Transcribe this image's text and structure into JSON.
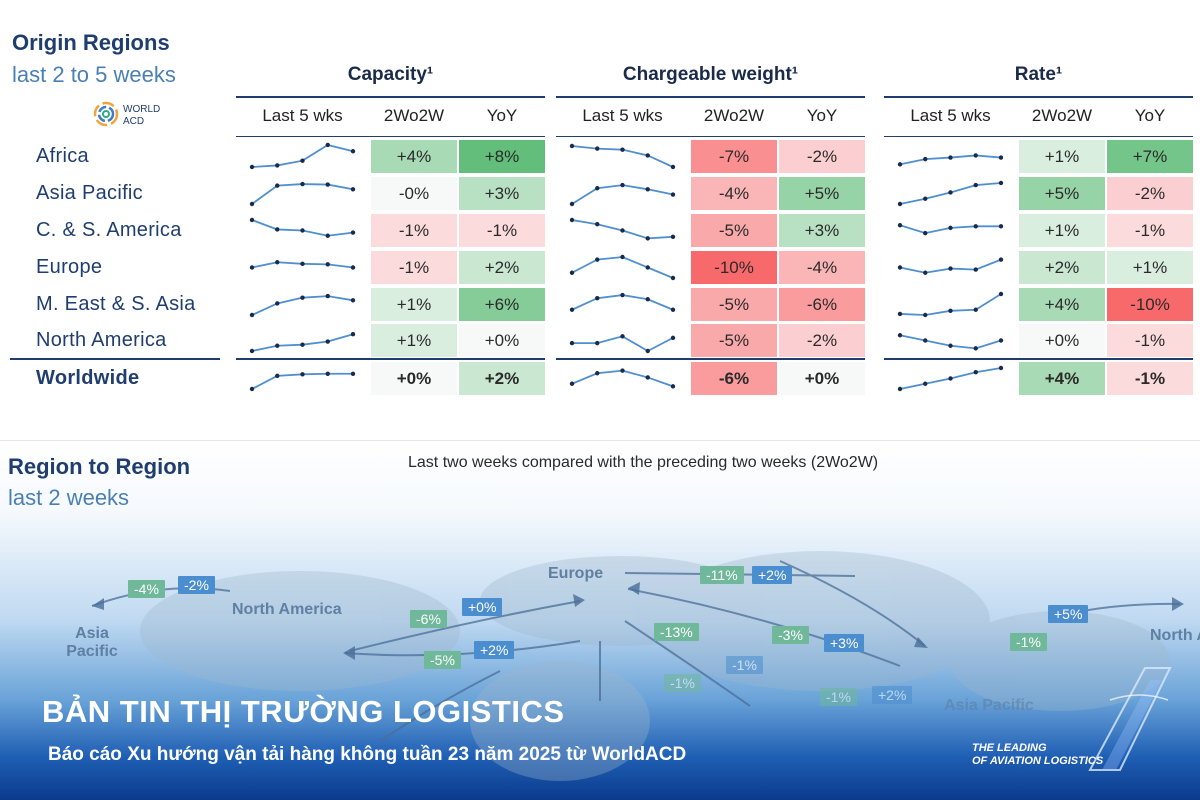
{
  "origin": {
    "title": "Origin Regions",
    "subtitle": "last 2 to 5 weeks",
    "logo_text": [
      "WORLD",
      "ACD"
    ]
  },
  "groups": [
    {
      "title": "Capacity¹",
      "cols": [
        "Last 5 wks",
        "2Wo2W",
        "YoY"
      ]
    },
    {
      "title": "Chargeable weight¹",
      "cols": [
        "Last 5 wks",
        "2Wo2W",
        "YoY"
      ]
    },
    {
      "title": "Rate¹",
      "cols": [
        "Last 5 wks",
        "2Wo2W",
        "YoY"
      ]
    }
  ],
  "chart_data": {
    "type": "table",
    "title": "Origin Regions — last 2 to 5 weeks",
    "rows": [
      {
        "region": "Africa",
        "capacity": {
          "spark": [
            1.0,
            1.3,
            2.2,
            5.2,
            4.0
          ],
          "w2w": "+4%",
          "w2w_val": 4,
          "yoy": "+8%",
          "yoy_val": 8
        },
        "weight": {
          "spark": [
            5.0,
            4.5,
            4.3,
            3.2,
            1.0
          ],
          "w2w": "-7%",
          "w2w_val": -7,
          "yoy": "-2%",
          "yoy_val": -2
        },
        "rate": {
          "spark": [
            1.5,
            2.5,
            2.8,
            3.2,
            2.8
          ],
          "w2w": "+1%",
          "w2w_val": 1,
          "yoy": "+7%",
          "yoy_val": 7
        }
      },
      {
        "region": "Asia Pacific",
        "capacity": {
          "spark": [
            1.0,
            4.5,
            4.8,
            4.7,
            3.8
          ],
          "w2w": "-0%",
          "w2w_val": 0,
          "yoy": "+3%",
          "yoy_val": 3
        },
        "weight": {
          "spark": [
            1.0,
            4.0,
            4.6,
            3.8,
            2.8
          ],
          "w2w": "-4%",
          "w2w_val": -4,
          "yoy": "+5%",
          "yoy_val": 5
        },
        "rate": {
          "spark": [
            1.0,
            2.0,
            3.2,
            4.6,
            5.0
          ],
          "w2w": "+5%",
          "w2w_val": 5,
          "yoy": "-2%",
          "yoy_val": -2
        }
      },
      {
        "region": "C. & S. America",
        "capacity": {
          "spark": [
            5.0,
            3.2,
            3.0,
            2.0,
            2.6
          ],
          "w2w": "-1%",
          "w2w_val": -1,
          "yoy": "-1%",
          "yoy_val": -1
        },
        "weight": {
          "spark": [
            5.0,
            4.2,
            3.0,
            1.5,
            1.8
          ],
          "w2w": "-5%",
          "w2w_val": -5,
          "yoy": "+3%",
          "yoy_val": 3
        },
        "rate": {
          "spark": [
            4.0,
            2.5,
            3.5,
            3.8,
            3.8
          ],
          "w2w": "+1%",
          "w2w_val": 1,
          "yoy": "-1%",
          "yoy_val": -1
        }
      },
      {
        "region": "Europe",
        "capacity": {
          "spark": [
            3.0,
            4.0,
            3.7,
            3.6,
            3.0
          ],
          "w2w": "-1%",
          "w2w_val": -1,
          "yoy": "+2%",
          "yoy_val": 2
        },
        "weight": {
          "spark": [
            2.0,
            4.5,
            5.0,
            3.0,
            1.0
          ],
          "w2w": "-10%",
          "w2w_val": -10,
          "yoy": "-4%",
          "yoy_val": -4
        },
        "rate": {
          "spark": [
            3.0,
            2.0,
            2.8,
            2.6,
            4.5
          ],
          "w2w": "+2%",
          "w2w_val": 2,
          "yoy": "+1%",
          "yoy_val": 1
        }
      },
      {
        "region": "M. East & S. Asia",
        "capacity": {
          "spark": [
            1.0,
            3.2,
            4.3,
            4.6,
            3.8
          ],
          "w2w": "+1%",
          "w2w_val": 1,
          "yoy": "+6%",
          "yoy_val": 6
        },
        "weight": {
          "spark": [
            2.0,
            4.2,
            4.8,
            4.0,
            2.0
          ],
          "w2w": "-5%",
          "w2w_val": -5,
          "yoy": "-6%",
          "yoy_val": -6
        },
        "rate": {
          "spark": [
            1.2,
            1.0,
            1.8,
            2.0,
            5.0
          ],
          "w2w": "+4%",
          "w2w_val": 4,
          "yoy": "-10%",
          "yoy_val": -10
        }
      },
      {
        "region": "North America",
        "capacity": {
          "spark": [
            1.0,
            2.0,
            2.2,
            2.8,
            4.2
          ],
          "w2w": "+1%",
          "w2w_val": 1,
          "yoy": "+0%",
          "yoy_val": 0
        },
        "weight": {
          "spark": [
            2.5,
            2.5,
            3.8,
            1.0,
            3.5
          ],
          "w2w": "-5%",
          "w2w_val": -5,
          "yoy": "-2%",
          "yoy_val": -2
        },
        "rate": {
          "spark": [
            4.0,
            3.0,
            2.0,
            1.5,
            3.0
          ],
          "w2w": "+0%",
          "w2w_val": 0,
          "yoy": "-1%",
          "yoy_val": -1
        }
      },
      {
        "region": "Worldwide",
        "bold": true,
        "capacity": {
          "spark": [
            1.0,
            3.5,
            3.8,
            3.9,
            3.9
          ],
          "w2w": "+0%",
          "w2w_val": 0,
          "yoy": "+2%",
          "yoy_val": 2
        },
        "weight": {
          "spark": [
            2.0,
            4.0,
            4.5,
            3.2,
            1.5
          ],
          "w2w": "-6%",
          "w2w_val": -6,
          "yoy": "+0%",
          "yoy_val": 0
        },
        "rate": {
          "spark": [
            1.0,
            2.0,
            3.0,
            4.2,
            5.0
          ],
          "w2w": "+4%",
          "w2w_val": 4,
          "yoy": "-1%",
          "yoy_val": -1
        }
      }
    ]
  },
  "region_to_region": {
    "title": "Region to Region",
    "subtitle": "last 2 weeks",
    "note": "Last two weeks compared with the preceding two weeks (2Wo2W)",
    "labels": {
      "europe": "Europe",
      "north_america": "North America",
      "asia_pacific": "Asia Pacific",
      "asia_pacific_2": "Asia Pacific",
      "north_america_right": "North Ameri"
    },
    "badges": {
      "na_ap_neg": "-4%",
      "na_ap_pos": "-2%",
      "eu_ap_neg": "-11%",
      "eu_ap_pos": "+2%",
      "na_eu_neg": "-6%",
      "na_eu_pos": "+0%",
      "eu_na_neg": "-5%",
      "eu_na_pos": "+2%",
      "mid_1": "-13%",
      "mid_2": "-3%",
      "mid_3": "+3%",
      "mid_4": "-1%",
      "mid_5": "-1%",
      "ap_na_neg": "-1%",
      "ap_na_pos": "+5%",
      "low_1": "-1%",
      "low_2": "+2%"
    }
  },
  "banner": {
    "title": "BẢN TIN THỊ TRƯỜNG LOGISTICS",
    "subtitle": "Báo cáo Xu hướng vận tải hàng không tuần 23 năm 2025 từ WorldACD",
    "brand_line1": "THE LEADING",
    "brand_line2": "OF AVIATION LOGISTICS"
  },
  "colors": {
    "navy": "#1f3e6f",
    "green_strong": "#63be7b",
    "red_strong": "#f8696b"
  }
}
